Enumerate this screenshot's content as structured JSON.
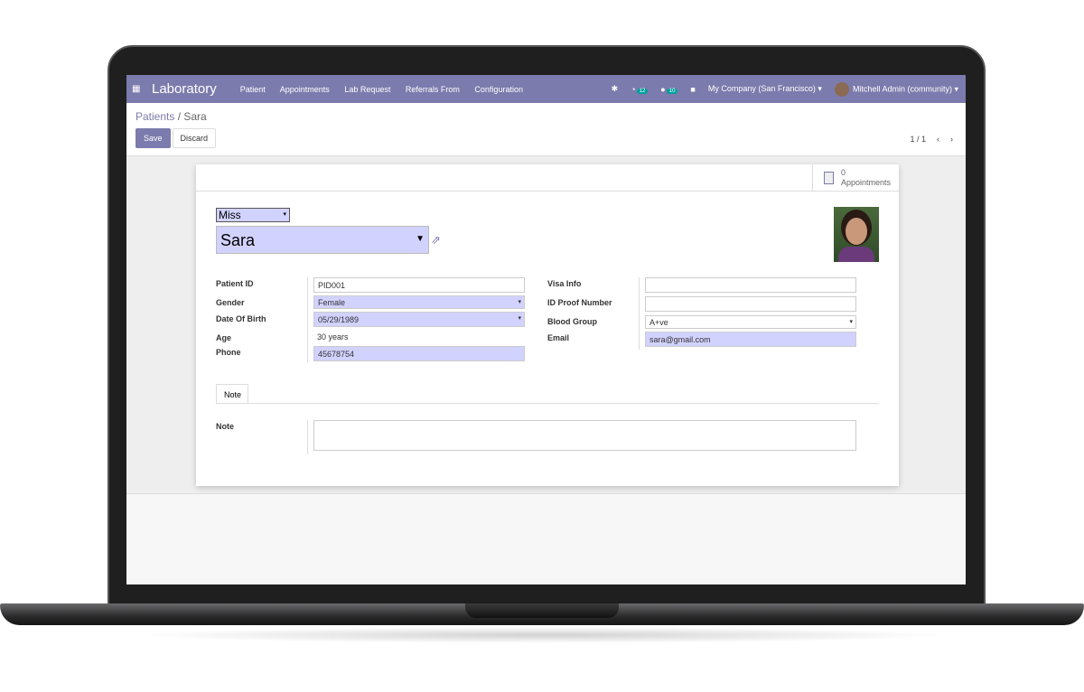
{
  "nav": {
    "app": "Laboratory",
    "menu": [
      "Patient",
      "Appointments",
      "Lab Request",
      "Referrals From",
      "Configuration"
    ],
    "activity_count": "12",
    "message_count": "10",
    "company": "My Company (San Francisco)",
    "user": "Mitchell Admin (community)",
    "accent": "#7c7bad"
  },
  "breadcrumb": {
    "parent": "Patients",
    "current": "Sara"
  },
  "buttons": {
    "save": "Save",
    "discard": "Discard"
  },
  "pager": {
    "value": "1 / 1"
  },
  "smart_button": {
    "count": "0",
    "label": "Appointments"
  },
  "form": {
    "title": "Miss",
    "name": "Sara",
    "left": [
      {
        "label": "Patient ID",
        "value": "PID001"
      },
      {
        "label": "Gender",
        "value": "Female"
      },
      {
        "label": "Date Of Birth",
        "value": "05/29/1989"
      },
      {
        "label": "Age",
        "value": "30 years"
      },
      {
        "label": "Phone",
        "value": "45678754"
      }
    ],
    "right": [
      {
        "label": "Visa Info",
        "value": ""
      },
      {
        "label": "ID Proof Number",
        "value": ""
      },
      {
        "label": "Blood Group",
        "value": "A+ve"
      },
      {
        "label": "Email",
        "value": "sara@gmail.com"
      }
    ],
    "tab": "Note",
    "note_label": "Note",
    "note_value": ""
  }
}
